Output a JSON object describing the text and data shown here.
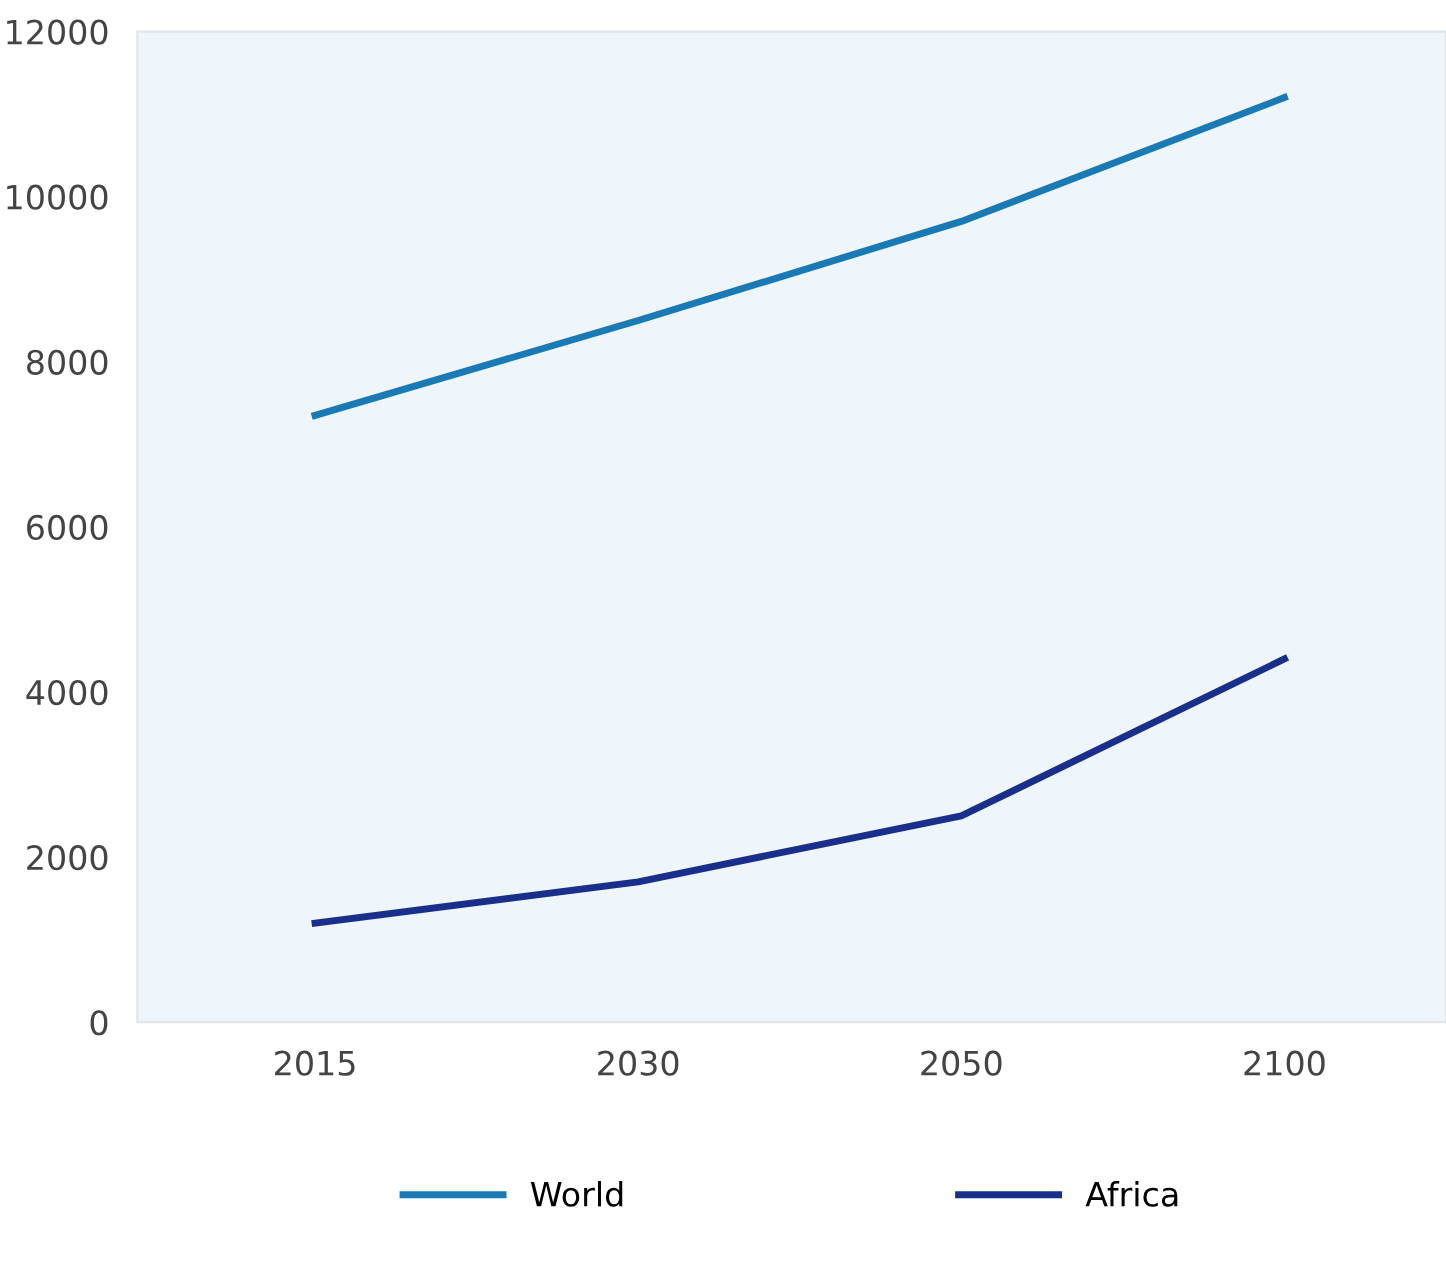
{
  "chart_data": {
    "type": "line",
    "categories": [
      "2015",
      "2030",
      "2050",
      "2100"
    ],
    "series": [
      {
        "name": "World",
        "color": "#1a7ab5",
        "values": [
          7350,
          8500,
          9700,
          11200
        ]
      },
      {
        "name": "Africa",
        "color": "#1a2f8c",
        "values": [
          1200,
          1700,
          2500,
          4400
        ]
      }
    ],
    "ylim": [
      0,
      12000
    ],
    "yticks": [
      0,
      2000,
      4000,
      6000,
      8000,
      10000,
      12000
    ],
    "grid": false,
    "legend": "bottom",
    "marker": "none",
    "line_style": "solid"
  }
}
